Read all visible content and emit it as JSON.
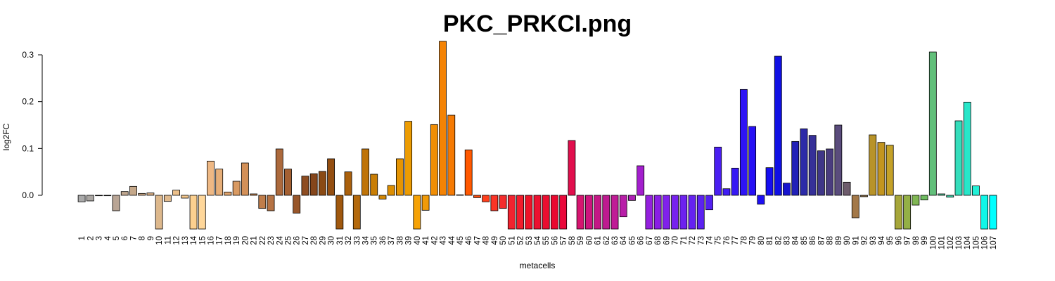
{
  "chart_data": {
    "type": "bar",
    "title": "PKC_PRKCI.png",
    "xlabel": "metacells",
    "ylabel": "log2FC",
    "ylim": [
      -0.072,
      0.33
    ],
    "yticks": [
      0.0,
      0.1,
      0.2,
      0.3
    ],
    "ytick_labels": [
      "0.0",
      "0.1",
      "0.2",
      "0.3"
    ],
    "grid": false,
    "legend": "none",
    "categories": [
      "1",
      "2",
      "3",
      "4",
      "5",
      "6",
      "7",
      "8",
      "9",
      "10",
      "11",
      "12",
      "13",
      "14",
      "15",
      "16",
      "17",
      "18",
      "19",
      "20",
      "21",
      "22",
      "23",
      "24",
      "25",
      "26",
      "27",
      "28",
      "29",
      "30",
      "31",
      "32",
      "33",
      "34",
      "35",
      "36",
      "37",
      "38",
      "39",
      "40",
      "41",
      "42",
      "43",
      "44",
      "45",
      "46",
      "47",
      "48",
      "49",
      "50",
      "51",
      "52",
      "53",
      "54",
      "55",
      "56",
      "57",
      "58",
      "59",
      "60",
      "61",
      "62",
      "63",
      "64",
      "65",
      "66",
      "67",
      "68",
      "69",
      "70",
      "71",
      "72",
      "73",
      "74",
      "75",
      "76",
      "77",
      "78",
      "79",
      "80",
      "81",
      "82",
      "83",
      "84",
      "85",
      "86",
      "87",
      "88",
      "89",
      "90",
      "91",
      "92",
      "93",
      "94",
      "95",
      "96",
      "97",
      "98",
      "99",
      "100",
      "101",
      "102",
      "103",
      "104",
      "105",
      "106",
      "107"
    ],
    "values": [
      -0.014,
      -0.012,
      -0.001,
      -0.001,
      -0.033,
      0.008,
      0.019,
      0.004,
      0.005,
      -0.072,
      -0.013,
      0.011,
      -0.006,
      -0.072,
      -0.072,
      0.073,
      0.056,
      0.007,
      0.03,
      0.069,
      0.003,
      -0.028,
      -0.033,
      0.099,
      0.056,
      -0.038,
      0.041,
      0.046,
      0.051,
      0.078,
      -0.072,
      0.05,
      -0.072,
      0.099,
      0.045,
      -0.008,
      0.021,
      0.078,
      0.158,
      -0.072,
      -0.032,
      0.151,
      0.329,
      0.171,
      0.001,
      0.097,
      -0.005,
      -0.014,
      -0.033,
      -0.028,
      -0.072,
      -0.072,
      -0.072,
      -0.072,
      -0.072,
      -0.072,
      -0.072,
      0.117,
      -0.072,
      -0.072,
      -0.072,
      -0.072,
      -0.072,
      -0.046,
      -0.011,
      0.063,
      -0.072,
      -0.072,
      -0.072,
      -0.072,
      -0.072,
      -0.072,
      -0.072,
      -0.031,
      0.103,
      0.014,
      0.058,
      0.226,
      0.147,
      -0.019,
      0.059,
      0.297,
      0.026,
      0.115,
      0.142,
      0.128,
      0.095,
      0.099,
      0.15,
      0.028,
      -0.048,
      -0.003,
      0.129,
      0.113,
      0.107,
      -0.072,
      -0.072,
      -0.021,
      -0.01,
      0.306,
      0.003,
      -0.004,
      0.159,
      0.199,
      0.02,
      -0.072,
      -0.072
    ],
    "colors": [
      "#A9A9A9",
      "#ABA7A3",
      "#AFA49E",
      "#B4A59A",
      "#B9A595",
      "#C0A790",
      "#C5A88A",
      "#CBA785",
      "#D2AA82",
      "#DDB88C",
      "#E0BA8E",
      "#EBBF8A",
      "#F5C78C",
      "#FCD08F",
      "#FFD79A",
      "#EEB884",
      "#E6AE78",
      "#DFA36C",
      "#D99A62",
      "#D39058",
      "#C98650",
      "#C07D4A",
      "#B67344",
      "#AC693C",
      "#A46032",
      "#98562A",
      "#8E4D22",
      "#85461B",
      "#8A4A14",
      "#944E10",
      "#A0580E",
      "#AA600C",
      "#B4690C",
      "#BF7409",
      "#C97E05",
      "#D38703",
      "#DC8E02",
      "#E59403",
      "#EC9C03",
      "#F6A205",
      "#F09A08",
      "#F18E05",
      "#F48304",
      "#F57A03",
      "#F77302",
      "#FF5800",
      "#FF4C0E",
      "#FF3F1B",
      "#FB3426",
      "#F42C2C",
      "#F1232F",
      "#F11C2C",
      "#EE1328",
      "#EC1130",
      "#EB0D30",
      "#E9092F",
      "#E9083A",
      "#E10E4D",
      "#D61570",
      "#CD157E",
      "#C41785",
      "#BE1A90",
      "#C01C96",
      "#B81EA8",
      "#AE1FB6",
      "#A31FCD",
      "#9420DE",
      "#8A1EE5",
      "#8021EB",
      "#7722EE",
      "#6D22EF",
      "#6522F0",
      "#5C22F0",
      "#5320F1",
      "#4A1EF2",
      "#401CF4",
      "#3618F4",
      "#2E14F5",
      "#2610F5",
      "#1E10F3",
      "#160EF1",
      "#1010E4",
      "#1714CF",
      "#2120B8",
      "#2C2AA8",
      "#363098",
      "#3F3688",
      "#4A3C7E",
      "#5A4C7C",
      "#6D5B6C",
      "#A37848",
      "#8C6B3E",
      "#B89329",
      "#C3951F",
      "#C4A128",
      "#A6A63A",
      "#94B046",
      "#80B653",
      "#6EBC60",
      "#62BF7A",
      "#4FC796",
      "#40D2A8",
      "#34DDBB",
      "#28E6C9",
      "#22F0D7",
      "#10F7E8",
      "#00FFFF"
    ]
  }
}
